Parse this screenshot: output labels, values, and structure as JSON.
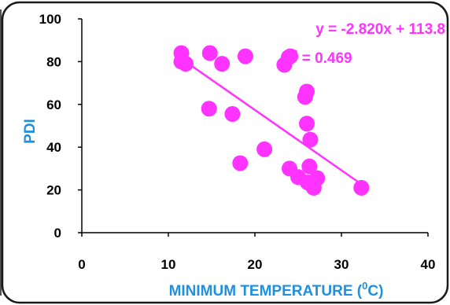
{
  "colors": {
    "points": "#FF33FF",
    "trendline": "#FF33FF",
    "axis_title": "#1E90E0",
    "axis": "#000000",
    "frame": "#1a1a1a",
    "annotation": "#FF33FF"
  },
  "chart_data": {
    "type": "scatter",
    "xlabel_main": "MINIMUM TEMPERATURE (",
    "xlabel_sup": "0",
    "xlabel_end": "C)",
    "ylabel": "PDI",
    "xlim": [
      0,
      40
    ],
    "ylim": [
      0,
      100
    ],
    "x_ticks": [
      "0",
      "10",
      "20",
      "30",
      "40"
    ],
    "y_ticks": [
      "0",
      "20",
      "40",
      "60",
      "80",
      "100"
    ],
    "grid": false,
    "points": [
      {
        "x": 11.5,
        "y": 84
      },
      {
        "x": 11.5,
        "y": 80
      },
      {
        "x": 12.0,
        "y": 79
      },
      {
        "x": 14.8,
        "y": 84
      },
      {
        "x": 16.2,
        "y": 79
      },
      {
        "x": 14.7,
        "y": 58
      },
      {
        "x": 17.4,
        "y": 55.5
      },
      {
        "x": 18.9,
        "y": 82.5
      },
      {
        "x": 18.3,
        "y": 32.5
      },
      {
        "x": 21.1,
        "y": 39
      },
      {
        "x": 23.4,
        "y": 78.5
      },
      {
        "x": 23.9,
        "y": 82
      },
      {
        "x": 24.1,
        "y": 82.5
      },
      {
        "x": 24.0,
        "y": 30
      },
      {
        "x": 25.0,
        "y": 26
      },
      {
        "x": 25.8,
        "y": 63.5
      },
      {
        "x": 26.0,
        "y": 66
      },
      {
        "x": 26.0,
        "y": 51
      },
      {
        "x": 26.4,
        "y": 43.5
      },
      {
        "x": 26.1,
        "y": 23.5
      },
      {
        "x": 26.3,
        "y": 31
      },
      {
        "x": 26.8,
        "y": 21
      },
      {
        "x": 27.2,
        "y": 25.5
      },
      {
        "x": 32.3,
        "y": 21
      }
    ],
    "trendline": {
      "slope": -2.82,
      "intercept": 113.8,
      "x_range": [
        11.5,
        32.3
      ]
    },
    "annotations": {
      "equation": "y = -2.820x + 113.8",
      "r2_prefix": "R",
      "r2_sup": "2",
      "r2_value": " = 0.469"
    }
  }
}
